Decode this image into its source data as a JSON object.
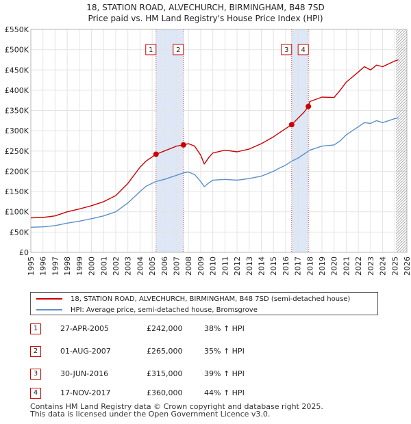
{
  "title_line1": "18, STATION ROAD, ALVECHURCH, BIRMINGHAM, B48 7SD",
  "title_line2": "Price paid vs. HM Land Registry's House Price Index (HPI)",
  "chart_data": {
    "type": "line",
    "title": "18, STATION ROAD, ALVECHURCH, BIRMINGHAM, B48 7SD — Price paid vs. HM Land Registry's House Price Index (HPI)",
    "xlim": [
      1995,
      2026
    ],
    "ylim": [
      0,
      550000
    ],
    "x_ticks": [
      1995,
      1996,
      1997,
      1998,
      1999,
      2000,
      2001,
      2002,
      2003,
      2004,
      2005,
      2006,
      2007,
      2008,
      2009,
      2010,
      2011,
      2012,
      2013,
      2014,
      2015,
      2016,
      2017,
      2018,
      2019,
      2020,
      2021,
      2022,
      2023,
      2024,
      2025,
      2026
    ],
    "y_ticks": [
      {
        "value": 0,
        "label": "£0"
      },
      {
        "value": 50000,
        "label": "£50K"
      },
      {
        "value": 100000,
        "label": "£100K"
      },
      {
        "value": 150000,
        "label": "£150K"
      },
      {
        "value": 200000,
        "label": "£200K"
      },
      {
        "value": 250000,
        "label": "£250K"
      },
      {
        "value": 300000,
        "label": "£300K"
      },
      {
        "value": 350000,
        "label": "£350K"
      },
      {
        "value": 400000,
        "label": "£400K"
      },
      {
        "value": 450000,
        "label": "£450K"
      },
      {
        "value": 500000,
        "label": "£500K"
      },
      {
        "value": 550000,
        "label": "£550K"
      }
    ],
    "series": [
      {
        "name": "18, STATION ROAD, ALVECHURCH, BIRMINGHAM, B48 7SD (semi-detached house)",
        "color": "#cc0000",
        "x": [
          1995,
          1996,
          1997,
          1998,
          1999,
          2000,
          2001,
          2002,
          2003,
          2004,
          2004.5,
          2005.32,
          2006,
          2007,
          2007.58,
          2008,
          2008.5,
          2009,
          2009.3,
          2009.7,
          2010,
          2011,
          2012,
          2013,
          2014,
          2015,
          2015.5,
          2016,
          2016.5,
          2017,
          2017.5,
          2017.88,
          2018,
          2019,
          2020,
          2020.5,
          2021,
          2022,
          2022.5,
          2023,
          2023.5,
          2024,
          2024.5,
          2025,
          2025.3
        ],
        "values": [
          85000,
          86000,
          90000,
          100000,
          107000,
          115000,
          125000,
          140000,
          170000,
          210000,
          225000,
          242000,
          250000,
          262000,
          265000,
          268000,
          262000,
          240000,
          218000,
          235000,
          245000,
          252000,
          248000,
          255000,
          268000,
          285000,
          295000,
          305000,
          315000,
          330000,
          345000,
          360000,
          372000,
          383000,
          382000,
          400000,
          420000,
          445000,
          458000,
          450000,
          462000,
          458000,
          465000,
          472000,
          475000
        ]
      },
      {
        "name": "HPI: Average price, semi-detached house, Bromsgrove",
        "color": "#5b8fc9",
        "x": [
          1995,
          1996,
          1997,
          1998,
          1999,
          2000,
          2001,
          2002,
          2003,
          2004,
          2004.5,
          2005.32,
          2006,
          2007,
          2007.58,
          2008,
          2008.5,
          2009,
          2009.3,
          2009.7,
          2010,
          2011,
          2012,
          2013,
          2014,
          2015,
          2015.5,
          2016,
          2016.5,
          2017,
          2017.5,
          2017.88,
          2018,
          2019,
          2020,
          2020.5,
          2021,
          2022,
          2022.5,
          2023,
          2023.5,
          2024,
          2024.5,
          2025,
          2025.3
        ],
        "values": [
          62000,
          63000,
          66000,
          72000,
          77000,
          83000,
          90000,
          100000,
          122000,
          150000,
          163000,
          175000,
          180000,
          190000,
          196000,
          198000,
          192000,
          175000,
          162000,
          172000,
          178000,
          180000,
          178000,
          182000,
          188000,
          200000,
          208000,
          215000,
          225000,
          232000,
          242000,
          250000,
          252000,
          262000,
          265000,
          275000,
          290000,
          310000,
          320000,
          318000,
          325000,
          320000,
          325000,
          330000,
          332000
        ]
      }
    ],
    "sales": [
      {
        "label": "1",
        "x": 2005.32,
        "value": 242000
      },
      {
        "label": "2",
        "x": 2007.58,
        "value": 265000
      },
      {
        "label": "3",
        "x": 2016.5,
        "value": 315000
      },
      {
        "label": "4",
        "x": 2017.88,
        "value": 360000
      }
    ],
    "shaded_periods": [
      [
        2005.32,
        2007.58
      ],
      [
        2016.5,
        2017.88
      ]
    ],
    "forecast_from": 2025.1
  },
  "legend": {
    "items": [
      {
        "label": "18, STATION ROAD, ALVECHURCH, BIRMINGHAM, B48 7SD (semi-detached house)",
        "color": "#cc0000"
      },
      {
        "label": "HPI: Average price, semi-detached house, Bromsgrove",
        "color": "#5b8fc9"
      }
    ]
  },
  "sales_table": [
    {
      "num": "1",
      "date": "27-APR-2005",
      "price": "£242,000",
      "pct": "38% ↑ HPI"
    },
    {
      "num": "2",
      "date": "01-AUG-2007",
      "price": "£265,000",
      "pct": "35% ↑ HPI"
    },
    {
      "num": "3",
      "date": "30-JUN-2016",
      "price": "£315,000",
      "pct": "39% ↑ HPI"
    },
    {
      "num": "4",
      "date": "17-NOV-2017",
      "price": "£360,000",
      "pct": "44% ↑ HPI"
    }
  ],
  "footer": {
    "line1": "Contains HM Land Registry data © Crown copyright and database right 2025.",
    "line2": "This data is licensed under the Open Government Licence v3.0."
  }
}
